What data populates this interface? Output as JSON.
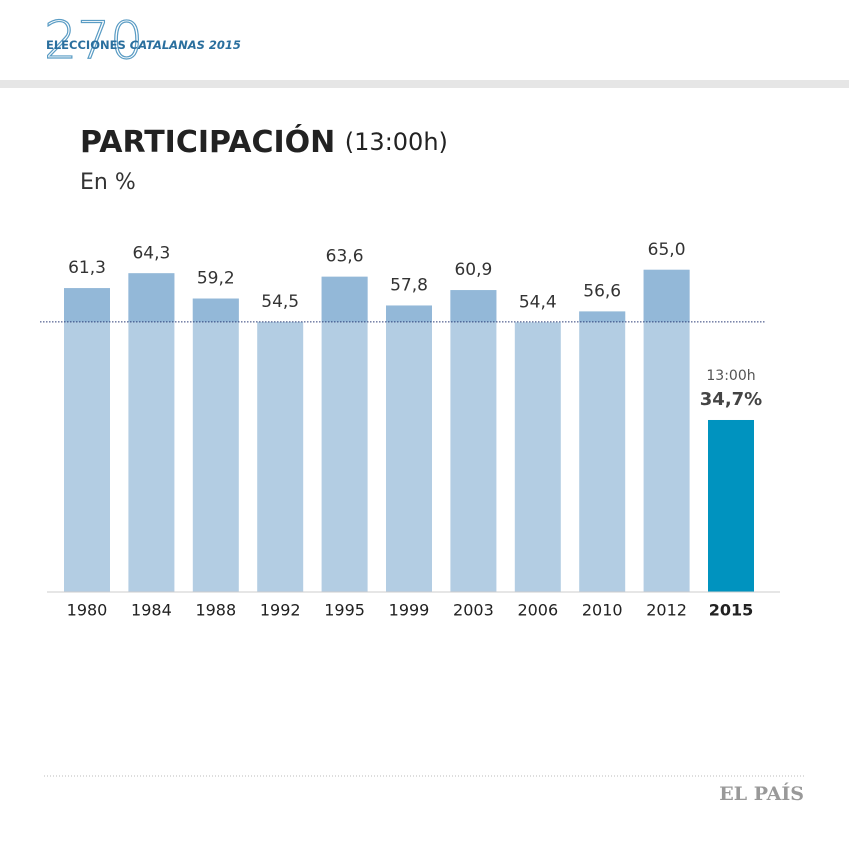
{
  "header": {
    "number": "270",
    "label": "ELECCIONES",
    "label_em": "CATALANAS 2015"
  },
  "chart_data": {
    "type": "bar",
    "title": "PARTICIPACIÓN",
    "title_note": "(13:00h)",
    "subtitle": "En %",
    "categories": [
      "1980",
      "1984",
      "1988",
      "1992",
      "1995",
      "1999",
      "2003",
      "2006",
      "2010",
      "2012",
      "2015"
    ],
    "values": [
      61.3,
      64.3,
      59.2,
      54.5,
      63.6,
      57.8,
      60.9,
      54.4,
      56.6,
      65.0,
      34.7
    ],
    "value_labels": [
      "61,3",
      "64,3",
      "59,2",
      "54,5",
      "63,6",
      "57,8",
      "60,9",
      "54,4",
      "56,6",
      "65,0",
      "34,7%"
    ],
    "colors": [
      "#b3cde3",
      "#b3cde3",
      "#b3cde3",
      "#b3cde3",
      "#b3cde3",
      "#b3cde3",
      "#b3cde3",
      "#b3cde3",
      "#b3cde3",
      "#b3cde3",
      "#0093bf"
    ],
    "highlight_color": "#0093bf",
    "upper_color": "#93b8d8",
    "reference_line": 54.5,
    "annotation": "13:00h",
    "ylim": [
      0,
      70
    ]
  },
  "footer": {
    "brand": "EL PAÍS"
  }
}
